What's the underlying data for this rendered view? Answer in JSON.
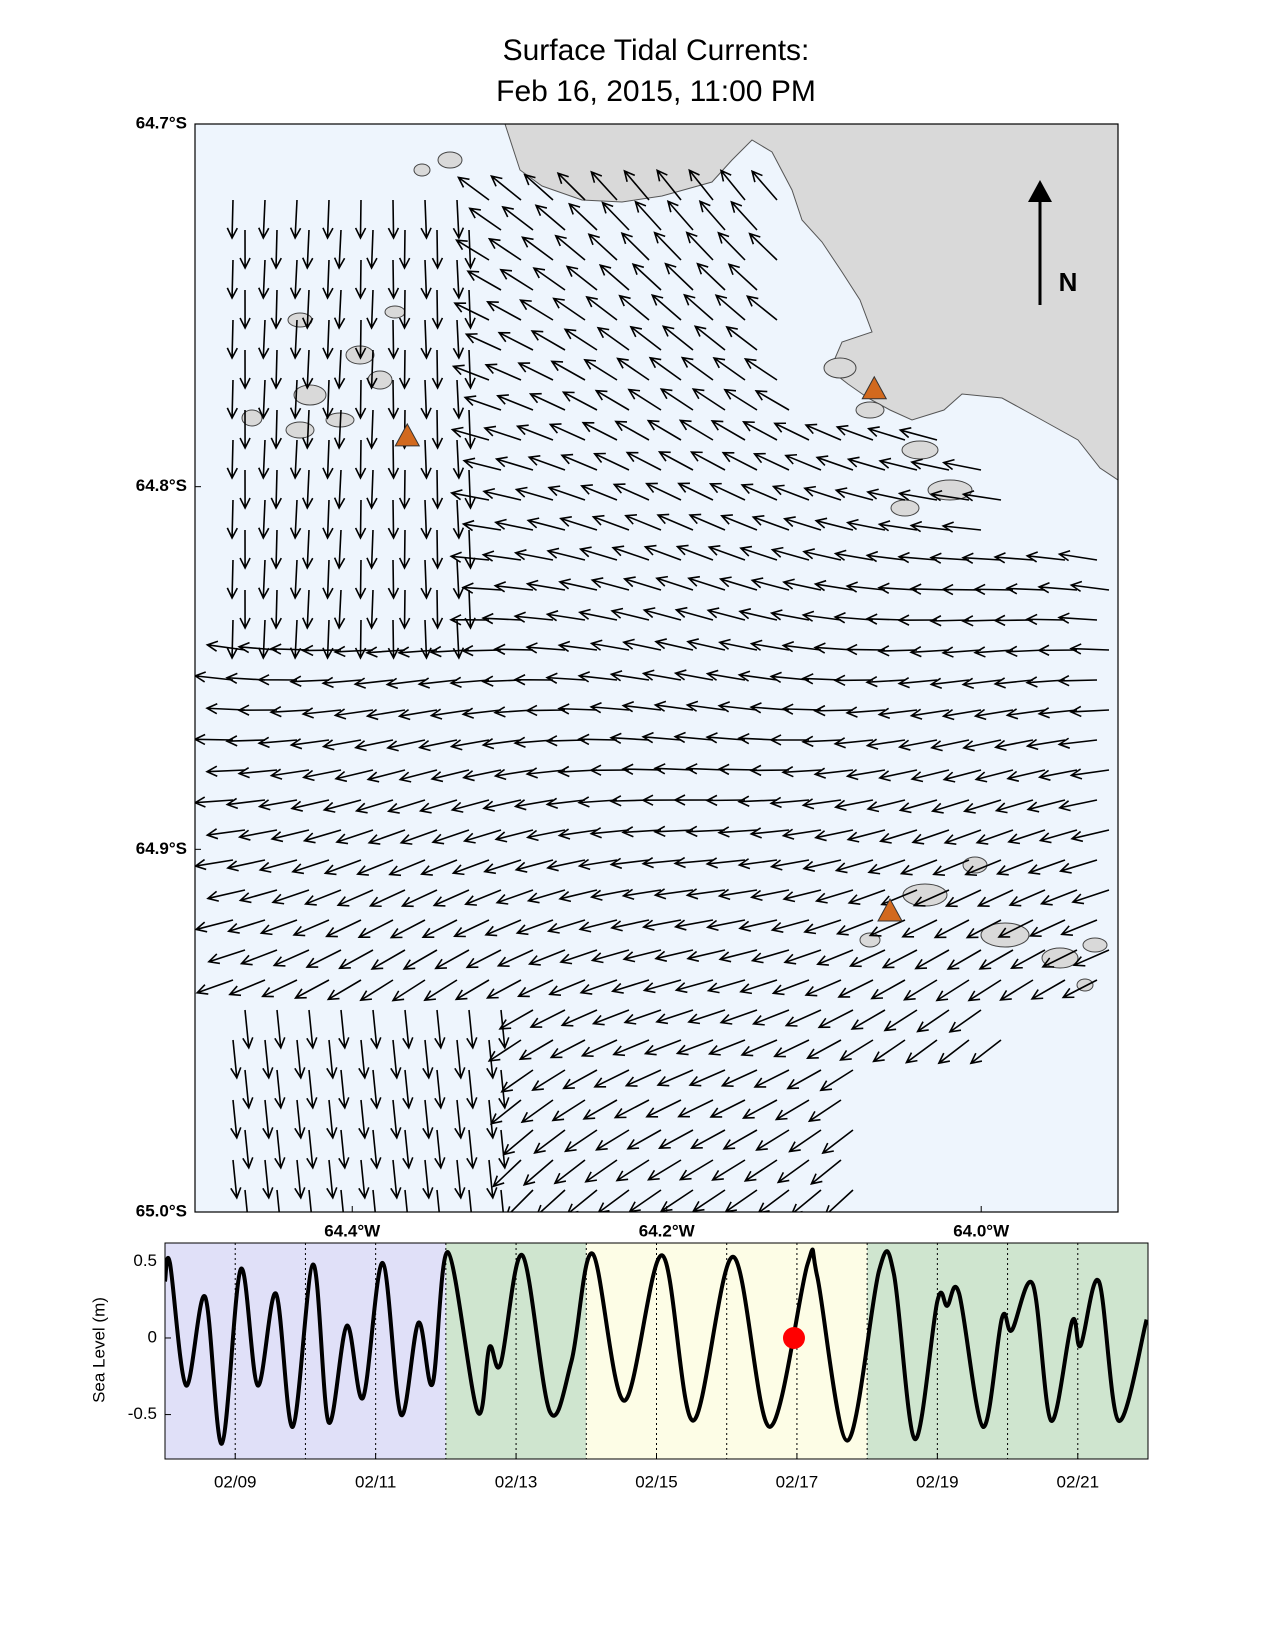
{
  "map": {
    "title": [
      "Surface Tidal Currents:",
      "Feb 16, 2015, 11:00 PM"
    ],
    "north_label": "N",
    "xlim": [
      -64.5,
      -63.913
    ],
    "ylim": [
      -65.0,
      -64.7
    ],
    "xticks": [
      {
        "value": -64.4,
        "label": "64.4°W"
      },
      {
        "value": -64.2,
        "label": "64.2°W"
      },
      {
        "value": -64.0,
        "label": "64.0°W"
      }
    ],
    "yticks": [
      {
        "value": -64.7,
        "label": "64.7°S"
      },
      {
        "value": -64.8,
        "label": "64.8°S"
      },
      {
        "value": -64.9,
        "label": "64.9°S"
      },
      {
        "value": -65.0,
        "label": "65.0°S"
      }
    ],
    "sites": {
      "lon": [
        -64.365,
        -64.068,
        -64.058
      ],
      "lat": [
        -64.786,
        -64.773,
        -64.917
      ],
      "color": "#d2691e"
    }
  },
  "chart_data": {
    "type": "line",
    "ylabel": "Sea Level (m)",
    "xlim": [
      8,
      22
    ],
    "ylim": [
      -0.79,
      0.62
    ],
    "yticks": [
      0.5,
      0,
      -0.5
    ],
    "xticks": [
      {
        "value": 9,
        "label": "02/09"
      },
      {
        "value": 11,
        "label": "02/11"
      },
      {
        "value": 13,
        "label": "02/13"
      },
      {
        "value": 15,
        "label": "02/15"
      },
      {
        "value": 17,
        "label": "02/17"
      },
      {
        "value": 19,
        "label": "02/19"
      },
      {
        "value": 21,
        "label": "02/21"
      }
    ],
    "xminorticks": [
      9,
      10,
      11,
      12,
      13,
      14,
      15,
      16,
      17,
      18,
      19,
      20,
      21
    ],
    "periods": [
      {
        "start": 8,
        "end": 12,
        "color": "#e0e0f8"
      },
      {
        "start": 12,
        "end": 14,
        "color": "#cfe5cf"
      },
      {
        "start": 14,
        "end": 18,
        "color": "#fdfde6"
      },
      {
        "start": 18,
        "end": 22,
        "color": "#cfe5cf"
      }
    ],
    "x": [
      8.0,
      8.07,
      8.3,
      8.57,
      8.81,
      9.08,
      9.32,
      9.58,
      9.82,
      10.11,
      10.33,
      10.59,
      10.82,
      11.1,
      11.36,
      11.61,
      11.81,
      12.03,
      12.45,
      12.62,
      12.78,
      13.09,
      13.48,
      13.79,
      14.09,
      14.54,
      15.08,
      15.52,
      16.09,
      16.61,
      17.15,
      17.29,
      17.72,
      18.17,
      18.38,
      18.68,
      19.0,
      19.14,
      19.31,
      19.65,
      19.92,
      20.06,
      20.36,
      20.62,
      20.92,
      21.04,
      21.3,
      21.58,
      21.98
    ],
    "values": [
      0.37,
      0.49,
      -0.31,
      0.27,
      -0.69,
      0.45,
      -0.31,
      0.29,
      -0.58,
      0.48,
      -0.55,
      0.08,
      -0.39,
      0.49,
      -0.5,
      0.1,
      -0.3,
      0.56,
      -0.48,
      -0.06,
      -0.17,
      0.54,
      -0.48,
      -0.15,
      0.55,
      -0.41,
      0.54,
      -0.54,
      0.53,
      -0.58,
      0.48,
      0.4,
      -0.67,
      0.44,
      0.42,
      -0.66,
      0.24,
      0.21,
      0.29,
      -0.58,
      0.13,
      0.05,
      0.35,
      -0.54,
      0.11,
      -0.05,
      0.37,
      -0.54,
      0.12
    ],
    "color": "#000000",
    "marker": {
      "x": 16.958,
      "y": 0,
      "color": "#ff0000"
    }
  }
}
